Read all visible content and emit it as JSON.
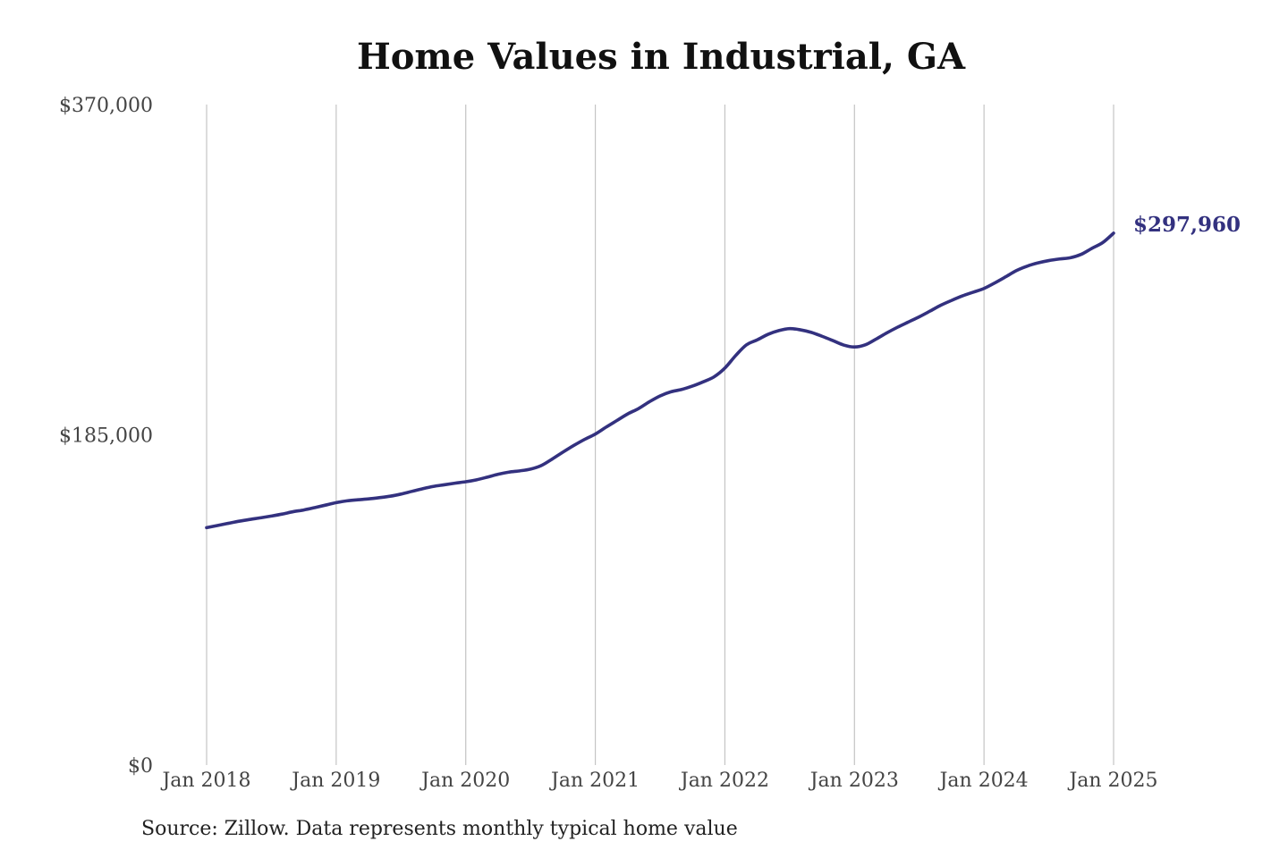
{
  "chart_data": {
    "type": "line",
    "title": "Home Values in Industrial, GA",
    "xlabel": "",
    "ylabel": "",
    "x_ticks": [
      "Jan 2018",
      "Jan 2019",
      "Jan 2020",
      "Jan 2021",
      "Jan 2022",
      "Jan 2023",
      "Jan 2024",
      "Jan 2025"
    ],
    "y_ticks": [
      "$370,000",
      "$185,000",
      "$0"
    ],
    "y_tick_values": [
      370000,
      185000,
      0
    ],
    "ylim": [
      0,
      370000
    ],
    "xlim": [
      "2018-01",
      "2025-01"
    ],
    "grid": {
      "vertical": true,
      "horizontal": false
    },
    "legend": "none",
    "line_color": "#33317f",
    "end_label": "$297,960",
    "series": [
      {
        "x": [
          "2018-01",
          "2018-02",
          "2018-03",
          "2018-04",
          "2018-05",
          "2018-06",
          "2018-07",
          "2018-08",
          "2018-09",
          "2018-10",
          "2018-11",
          "2018-12",
          "2019-01",
          "2019-02",
          "2019-03",
          "2019-04",
          "2019-05",
          "2019-06",
          "2019-07",
          "2019-08",
          "2019-09",
          "2019-10",
          "2019-11",
          "2019-12",
          "2020-01",
          "2020-02",
          "2020-03",
          "2020-04",
          "2020-05",
          "2020-06",
          "2020-07",
          "2020-08",
          "2020-09",
          "2020-10",
          "2020-11",
          "2020-12",
          "2021-01",
          "2021-02",
          "2021-03",
          "2021-04",
          "2021-05",
          "2021-06",
          "2021-07",
          "2021-08",
          "2021-09",
          "2021-10",
          "2021-11",
          "2021-12",
          "2022-01",
          "2022-02",
          "2022-03",
          "2022-04",
          "2022-05",
          "2022-06",
          "2022-07",
          "2022-08",
          "2022-09",
          "2022-10",
          "2022-11",
          "2022-12",
          "2023-01",
          "2023-02",
          "2023-03",
          "2023-04",
          "2023-05",
          "2023-06",
          "2023-07",
          "2023-08",
          "2023-09",
          "2023-10",
          "2023-11",
          "2023-12",
          "2024-01",
          "2024-02",
          "2024-03",
          "2024-04",
          "2024-05",
          "2024-06",
          "2024-07",
          "2024-08",
          "2024-09",
          "2024-10",
          "2024-11",
          "2024-12",
          "2025-01"
        ],
        "values": [
          133000,
          134200,
          135400,
          136600,
          137600,
          138500,
          139500,
          140600,
          141900,
          142900,
          144200,
          145600,
          147000,
          148000,
          148600,
          149100,
          149800,
          150600,
          151800,
          153300,
          154800,
          156100,
          157000,
          157900,
          158700,
          159800,
          161300,
          162900,
          164100,
          164800,
          165800,
          167800,
          171400,
          175300,
          179000,
          182400,
          185400,
          189300,
          193000,
          196700,
          199700,
          203500,
          206800,
          209100,
          210400,
          212300,
          214700,
          217500,
          222400,
          229400,
          235400,
          238200,
          241300,
          243400,
          244500,
          243800,
          242400,
          240200,
          237800,
          235300,
          234200,
          235400,
          238600,
          242100,
          245300,
          248200,
          251100,
          254300,
          257600,
          260300,
          262800,
          264900,
          267000,
          270100,
          273500,
          277000,
          279500,
          281300,
          282600,
          283500,
          284200,
          286100,
          289500,
          292700,
          297960
        ]
      }
    ]
  },
  "footer": {
    "source": "Source: Zillow. Data represents monthly typical home value"
  }
}
